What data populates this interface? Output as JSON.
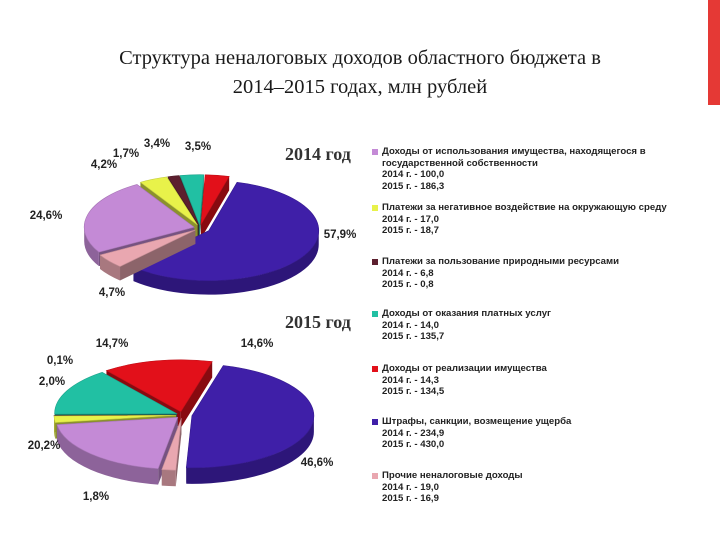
{
  "title_lines": [
    "Структура неналоговых доходов областного бюджета в",
    "2014–2015 годах, млн рублей"
  ],
  "colors": {
    "accent_bar": "#e53935",
    "slices": [
      "#3f1fa8",
      "#c48ad6",
      "#e9a7b0",
      "#e8f24a",
      "#5c1f2e",
      "#21c0a3",
      "#e2101a"
    ]
  },
  "chart_data": [
    {
      "type": "pie",
      "year_label": "2014 год",
      "slices": [
        {
          "series": "Штрафы, санкции, возмещение ущерба",
          "value": 234.9,
          "label": "57,9%",
          "color": "#3f1fa8"
        },
        {
          "series": "Прочие неналоговые доходы",
          "value": 19.0,
          "label": "4,7%",
          "color": "#e9a7b0"
        },
        {
          "series": "Доходы от использования имущества",
          "value": 100.0,
          "label": "24,6%",
          "color": "#c48ad6"
        },
        {
          "series": "Платежи за негативное воздействие",
          "value": 17.0,
          "label": "4,2%",
          "color": "#e8f24a"
        },
        {
          "series": "Платежи за пользование природными ресурсами",
          "value": 6.8,
          "label": "1,7%",
          "color": "#5c1f2e"
        },
        {
          "series": "Доходы от оказания платных услуг",
          "value": 14.0,
          "label": "3,4%",
          "color": "#21c0a3"
        },
        {
          "series": "Доходы от реализации имущества",
          "value": 14.3,
          "label": "3,5%",
          "color": "#e2101a"
        }
      ]
    },
    {
      "type": "pie",
      "year_label": "2015 год",
      "slices": [
        {
          "series": "Штрафы, санкции, возмещение ущерба",
          "value": 430.0,
          "label": "46,6%",
          "color": "#3f1fa8"
        },
        {
          "series": "Прочие неналоговые доходы",
          "value": 16.9,
          "label": "1,8%",
          "color": "#e9a7b0"
        },
        {
          "series": "Доходы от использования имущества",
          "value": 186.3,
          "label": "20,2%",
          "color": "#c48ad6"
        },
        {
          "series": "Платежи за негативное воздействие",
          "value": 18.7,
          "label": "2,0%",
          "color": "#e8f24a"
        },
        {
          "series": "Платежи за пользование природными ресурсами",
          "value": 0.8,
          "label": "0,1%",
          "color": "#5c1f2e"
        },
        {
          "series": "Доходы от оказания платных услуг",
          "value": 135.7,
          "label": "14,7%",
          "color": "#21c0a3"
        },
        {
          "series": "Доходы от реализации имущества",
          "value": 134.5,
          "label": "14,6%",
          "color": "#e2101a"
        }
      ]
    }
  ],
  "legend": [
    {
      "color": "#c48ad6",
      "text": "Доходы от использования имущества, находящегося в государственной собственности",
      "v2014": "2014 г. - 100,0",
      "v2015": "2015 г. - 186,3"
    },
    {
      "color": "#e8f24a",
      "text": "Платежи за негативное воздействие на окружающую среду",
      "v2014": "2014 г. - 17,0",
      "v2015": "2015 г. - 18,7"
    },
    {
      "color": "#5c1f2e",
      "text": "Платежи за пользование природными ресурсами",
      "v2014": "2014 г. - 6,8",
      "v2015": "2015 г. - 0,8"
    },
    {
      "color": "#21c0a3",
      "text": "Доходы от оказания платных услуг",
      "v2014": "2014 г. - 14,0",
      "v2015": "2015 г. - 135,7"
    },
    {
      "color": "#e2101a",
      "text": "Доходы от реализации имущества",
      "v2014": "2014 г. - 14,3",
      "v2015": "2015 г. - 134,5"
    },
    {
      "color": "#3f1fa8",
      "text": "Штрафы, санкции, возмещение ущерба",
      "v2014": "2014 г. - 234,9",
      "v2015": "2015 г. - 430,0"
    },
    {
      "color": "#e9a7b0",
      "text": "Прочие неналоговые доходы",
      "v2014": "2014 г. - 19,0",
      "v2015": "2015 г. - 16,9"
    }
  ]
}
